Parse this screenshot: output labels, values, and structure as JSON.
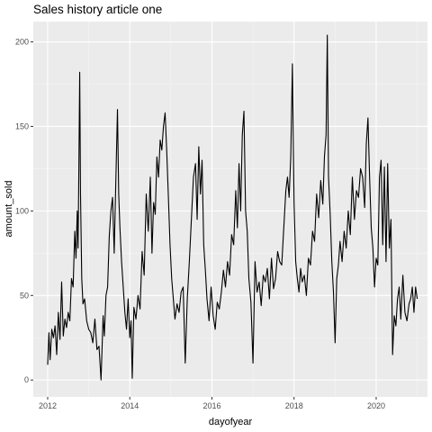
{
  "chart_data": {
    "type": "line",
    "title": "Sales history article one",
    "xlabel": "dayofyear",
    "ylabel": "amount_sold",
    "xlim": [
      2011.65,
      2021.25
    ],
    "ylim": [
      -10,
      212
    ],
    "x_ticks": [
      2012,
      2014,
      2016,
      2018,
      2020
    ],
    "x_tick_labels": [
      "2012",
      "2014",
      "2016",
      "2018",
      "2020"
    ],
    "y_ticks": [
      0,
      50,
      100,
      150,
      200
    ],
    "y_tick_labels": [
      "0",
      "50",
      "100",
      "150",
      "200"
    ],
    "grid": true,
    "legend": "none",
    "colors": {
      "panel": "#ebebeb",
      "grid_major": "#ffffff",
      "grid_minor": "#f5f5f5",
      "line": "#000000"
    },
    "series": [
      {
        "x": [
          2012.0,
          2012.03,
          2012.06,
          2012.1,
          2012.14,
          2012.18,
          2012.22,
          2012.26,
          2012.3,
          2012.34,
          2012.38,
          2012.42,
          2012.46,
          2012.5,
          2012.54,
          2012.58,
          2012.62,
          2012.66,
          2012.69,
          2012.72,
          2012.74,
          2012.76,
          2012.78,
          2012.8,
          2012.83,
          2012.86,
          2012.9,
          2012.95,
          2013.0,
          2013.05,
          2013.1,
          2013.15,
          2013.2,
          2013.25,
          2013.3,
          2013.35,
          2013.38,
          2013.42,
          2013.46,
          2013.5,
          2013.54,
          2013.58,
          2013.62,
          2013.66,
          2013.7,
          2013.73,
          2013.76,
          2013.8,
          2013.84,
          2013.88,
          2013.92,
          2013.96,
          2014.0,
          2014.03,
          2014.06,
          2014.1,
          2014.15,
          2014.2,
          2014.25,
          2014.3,
          2014.35,
          2014.4,
          2014.45,
          2014.5,
          2014.54,
          2014.58,
          2014.62,
          2014.66,
          2014.7,
          2014.74,
          2014.78,
          2014.82,
          2014.86,
          2014.9,
          2014.94,
          2014.98,
          2015.02,
          2015.06,
          2015.1,
          2015.15,
          2015.2,
          2015.25,
          2015.3,
          2015.35,
          2015.4,
          2015.45,
          2015.5,
          2015.55,
          2015.6,
          2015.64,
          2015.68,
          2015.72,
          2015.76,
          2015.8,
          2015.84,
          2015.88,
          2015.93,
          2015.98,
          2016.03,
          2016.08,
          2016.13,
          2016.18,
          2016.23,
          2016.28,
          2016.33,
          2016.38,
          2016.43,
          2016.48,
          2016.53,
          2016.58,
          2016.62,
          2016.66,
          2016.7,
          2016.74,
          2016.78,
          2016.82,
          2016.86,
          2016.9,
          2016.95,
          2017.0,
          2017.05,
          2017.1,
          2017.15,
          2017.2,
          2017.25,
          2017.3,
          2017.35,
          2017.4,
          2017.45,
          2017.5,
          2017.55,
          2017.6,
          2017.65,
          2017.7,
          2017.75,
          2017.8,
          2017.84,
          2017.88,
          2017.92,
          2017.96,
          2018.0,
          2018.04,
          2018.08,
          2018.12,
          2018.16,
          2018.2,
          2018.25,
          2018.3,
          2018.35,
          2018.4,
          2018.45,
          2018.5,
          2018.55,
          2018.6,
          2018.65,
          2018.7,
          2018.74,
          2018.78,
          2018.81,
          2018.84,
          2018.88,
          2018.92,
          2018.96,
          2019.0,
          2019.04,
          2019.08,
          2019.12,
          2019.17,
          2019.22,
          2019.27,
          2019.32,
          2019.37,
          2019.42,
          2019.47,
          2019.52,
          2019.57,
          2019.62,
          2019.67,
          2019.72,
          2019.76,
          2019.8,
          2019.84,
          2019.88,
          2019.92,
          2019.96,
          2020.0,
          2020.04,
          2020.08,
          2020.12,
          2020.16,
          2020.2,
          2020.24,
          2020.28,
          2020.32,
          2020.36,
          2020.4,
          2020.44,
          2020.48,
          2020.52,
          2020.56,
          2020.6,
          2020.65,
          2020.7,
          2020.75,
          2020.8,
          2020.84,
          2020.88,
          2020.92,
          2020.96,
          2021.0
        ],
        "y": [
          9,
          28,
          12,
          30,
          25,
          32,
          15,
          40,
          24,
          58,
          26,
          36,
          31,
          40,
          35,
          60,
          55,
          88,
          72,
          100,
          78,
          126,
          182,
          110,
          60,
          45,
          48,
          35,
          30,
          28,
          22,
          36,
          18,
          20,
          0,
          38,
          26,
          50,
          55,
          85,
          100,
          108,
          75,
          118,
          160,
          110,
          90,
          70,
          55,
          40,
          30,
          48,
          25,
          35,
          1,
          43,
          36,
          50,
          42,
          76,
          62,
          110,
          88,
          120,
          75,
          105,
          98,
          132,
          120,
          142,
          136,
          150,
          158,
          135,
          108,
          80,
          60,
          48,
          36,
          45,
          40,
          52,
          55,
          10,
          48,
          70,
          95,
          120,
          128,
          95,
          138,
          110,
          130,
          80,
          65,
          48,
          35,
          55,
          38,
          30,
          46,
          42,
          52,
          65,
          55,
          70,
          62,
          86,
          80,
          112,
          90,
          128,
          100,
          145,
          159,
          100,
          88,
          60,
          46,
          10,
          70,
          52,
          58,
          44,
          62,
          58,
          66,
          48,
          72,
          54,
          60,
          76,
          70,
          68,
          90,
          112,
          120,
          108,
          132,
          187,
          105,
          70,
          60,
          52,
          66,
          58,
          62,
          50,
          72,
          68,
          88,
          82,
          110,
          96,
          118,
          104,
          132,
          145,
          204,
          120,
          98,
          70,
          52,
          22,
          60,
          68,
          82,
          70,
          88,
          78,
          100,
          86,
          120,
          95,
          112,
          108,
          125,
          120,
          102,
          140,
          155,
          120,
          90,
          78,
          55,
          72,
          68,
          120,
          130,
          80,
          126,
          70,
          128,
          78,
          95,
          15,
          38,
          32,
          48,
          55,
          36,
          62,
          40,
          35,
          45,
          48,
          55,
          40,
          55,
          48
        ]
      }
    ]
  }
}
